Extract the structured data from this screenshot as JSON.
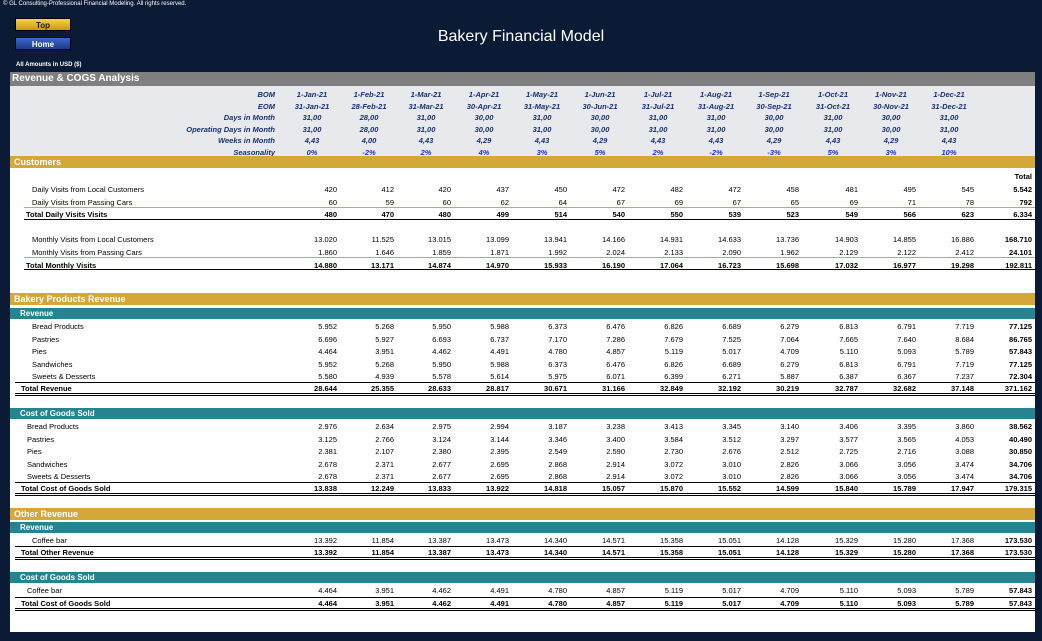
{
  "header": {
    "copyright": "© GL Consulting-Professional Financial Modeling. All rights reserved.",
    "top_button": "Top",
    "home_button": "Home",
    "title": "Bakery Financial Model",
    "amounts": "All Amounts in  USD ($)"
  },
  "analysis_title": "Revenue & COGS Analysis",
  "timeline": {
    "bom_label": "BOM",
    "eom_label": "EOM",
    "days_label": "Days in Month",
    "opdays_label": "Operating Days in Month",
    "weeks_label": "Weeks in Month",
    "season_label": "Seasonality",
    "bom": [
      "1-Jan-21",
      "1-Feb-21",
      "1-Mar-21",
      "1-Apr-21",
      "1-May-21",
      "1-Jun-21",
      "1-Jul-21",
      "1-Aug-21",
      "1-Sep-21",
      "1-Oct-21",
      "1-Nov-21",
      "1-Dec-21"
    ],
    "eom": [
      "31-Jan-21",
      "28-Feb-21",
      "31-Mar-21",
      "30-Apr-21",
      "31-May-21",
      "30-Jun-21",
      "31-Jul-21",
      "31-Aug-21",
      "30-Sep-21",
      "31-Oct-21",
      "30-Nov-21",
      "31-Dec-21"
    ],
    "days": [
      "31,00",
      "28,00",
      "31,00",
      "30,00",
      "31,00",
      "30,00",
      "31,00",
      "31,00",
      "30,00",
      "31,00",
      "30,00",
      "31,00"
    ],
    "opdays": [
      "31,00",
      "28,00",
      "31,00",
      "30,00",
      "31,00",
      "30,00",
      "31,00",
      "31,00",
      "30,00",
      "31,00",
      "30,00",
      "31,00"
    ],
    "weeks": [
      "4,43",
      "4,00",
      "4,43",
      "4,29",
      "4,43",
      "4,29",
      "4,43",
      "4,43",
      "4,29",
      "4,43",
      "4,29",
      "4,43"
    ],
    "season": [
      "0%",
      "-2%",
      "2%",
      "4%",
      "3%",
      "5%",
      "2%",
      "-2%",
      "-3%",
      "5%",
      "3%",
      "10%"
    ]
  },
  "colors": {
    "accent_gold": "#d4a838",
    "accent_teal": "#25848f",
    "header_navy": "#17306e",
    "seasonality_blue": "#1f2fd6"
  },
  "total_header": "Total",
  "customers": {
    "title": "Customers",
    "rows": [
      {
        "label": "Daily Visits from Local Customers",
        "values": [
          "420",
          "412",
          "420",
          "437",
          "450",
          "472",
          "482",
          "472",
          "458",
          "481",
          "495",
          "545"
        ],
        "total": "5.542",
        "bold": false
      },
      {
        "label": "Daily Visits from Passing Cars",
        "values": [
          "60",
          "59",
          "60",
          "62",
          "64",
          "67",
          "69",
          "67",
          "65",
          "69",
          "71",
          "78"
        ],
        "total": "792",
        "bold": false
      },
      {
        "label": "Total Daily Visits Visits",
        "values": [
          "480",
          "470",
          "480",
          "499",
          "514",
          "540",
          "550",
          "539",
          "523",
          "549",
          "566",
          "623"
        ],
        "total": "6.334",
        "bold": true
      },
      {
        "label": "Monthly Visits from Local Customers",
        "values": [
          "13.020",
          "11.525",
          "13.015",
          "13.099",
          "13.941",
          "14.166",
          "14.931",
          "14.633",
          "13.736",
          "14.903",
          "14.855",
          "16.886"
        ],
        "total": "168.710",
        "bold": false
      },
      {
        "label": "Monthly Visits from Passing Cars",
        "values": [
          "1.860",
          "1.646",
          "1.859",
          "1.871",
          "1.992",
          "2.024",
          "2.133",
          "2.090",
          "1.962",
          "2.129",
          "2.122",
          "2.412"
        ],
        "total": "24.101",
        "bold": false
      },
      {
        "label": "Total Monthly Visits",
        "values": [
          "14.880",
          "13.171",
          "14.874",
          "14.970",
          "15.933",
          "16.190",
          "17.064",
          "16.723",
          "15.698",
          "17.032",
          "16.977",
          "19.298"
        ],
        "total": "192.811",
        "bold": true
      }
    ]
  },
  "bakery": {
    "title": "Bakery Products Revenue",
    "revenue_title": "Revenue",
    "revenue_rows": [
      {
        "label": "Bread Products",
        "values": [
          "5.952",
          "5.268",
          "5.950",
          "5.988",
          "6.373",
          "6.476",
          "6.826",
          "6.689",
          "6.279",
          "6.813",
          "6.791",
          "7.719"
        ],
        "total": "77.125",
        "bold": false
      },
      {
        "label": "Pastries",
        "values": [
          "6.696",
          "5.927",
          "6.693",
          "6.737",
          "7.170",
          "7.286",
          "7.679",
          "7.525",
          "7.064",
          "7.665",
          "7.640",
          "8.684"
        ],
        "total": "86.765",
        "bold": false
      },
      {
        "label": "Pies",
        "values": [
          "4.464",
          "3.951",
          "4.462",
          "4.491",
          "4.780",
          "4.857",
          "5.119",
          "5.017",
          "4.709",
          "5.110",
          "5.093",
          "5.789"
        ],
        "total": "57.843",
        "bold": false
      },
      {
        "label": "Sandwiches",
        "values": [
          "5.952",
          "5.268",
          "5.950",
          "5.988",
          "6.373",
          "6.476",
          "6.826",
          "6.689",
          "6.279",
          "6.813",
          "6.791",
          "7.719"
        ],
        "total": "77.125",
        "bold": false
      },
      {
        "label": "Sweets & Desserts",
        "values": [
          "5.580",
          "4.939",
          "5.578",
          "5.614",
          "5.975",
          "6.071",
          "6.399",
          "6.271",
          "5.887",
          "6.387",
          "6.367",
          "7.237"
        ],
        "total": "72.304",
        "bold": false
      },
      {
        "label": "Total Revenue",
        "values": [
          "28.644",
          "25.355",
          "28.633",
          "28.817",
          "30.671",
          "31.166",
          "32.849",
          "32.192",
          "30.219",
          "32.787",
          "32.682",
          "37.148"
        ],
        "total": "371.162",
        "bold": true
      }
    ],
    "cogs_title": "Cost of Goods Sold",
    "cogs_rows": [
      {
        "label": "Bread Products",
        "values": [
          "2.976",
          "2.634",
          "2.975",
          "2.994",
          "3.187",
          "3.238",
          "3.413",
          "3.345",
          "3.140",
          "3.406",
          "3.395",
          "3.860"
        ],
        "total": "38.562",
        "bold": false
      },
      {
        "label": "Pastries",
        "values": [
          "3.125",
          "2.766",
          "3.124",
          "3.144",
          "3.346",
          "3.400",
          "3.584",
          "3.512",
          "3.297",
          "3.577",
          "3.565",
          "4.053"
        ],
        "total": "40.490",
        "bold": false
      },
      {
        "label": "Pies",
        "values": [
          "2.381",
          "2.107",
          "2.380",
          "2.395",
          "2.549",
          "2.590",
          "2.730",
          "2.676",
          "2.512",
          "2.725",
          "2.716",
          "3.088"
        ],
        "total": "30.850",
        "bold": false
      },
      {
        "label": "Sandwiches",
        "values": [
          "2.678",
          "2.371",
          "2.677",
          "2.695",
          "2.868",
          "2.914",
          "3.072",
          "3.010",
          "2.826",
          "3.066",
          "3.056",
          "3.474"
        ],
        "total": "34.706",
        "bold": false
      },
      {
        "label": "Sweets & Desserts",
        "values": [
          "2.678",
          "2.371",
          "2.677",
          "2.695",
          "2.868",
          "2.914",
          "3.072",
          "3.010",
          "2.826",
          "3.066",
          "3.056",
          "3.474"
        ],
        "total": "34.706",
        "bold": false
      },
      {
        "label": "Total Cost of Goods Sold",
        "values": [
          "13.838",
          "12.249",
          "13.833",
          "13.922",
          "14.818",
          "15.057",
          "15.870",
          "15.552",
          "14.599",
          "15.840",
          "15.789",
          "17.947"
        ],
        "total": "179.315",
        "bold": true
      }
    ]
  },
  "other": {
    "title": "Other Revenue",
    "revenue_title": "Revenue",
    "revenue_rows": [
      {
        "label": "Coffee bar",
        "values": [
          "13.392",
          "11.854",
          "13.387",
          "13.473",
          "14.340",
          "14.571",
          "15.358",
          "15.051",
          "14.128",
          "15.329",
          "15.280",
          "17.368"
        ],
        "total": "173.530",
        "bold": false
      },
      {
        "label": "Total Other Revenue",
        "values": [
          "13.392",
          "11.854",
          "13.387",
          "13.473",
          "14.340",
          "14.571",
          "15.358",
          "15.051",
          "14.128",
          "15.329",
          "15.280",
          "17.368"
        ],
        "total": "173.530",
        "bold": true
      }
    ],
    "cogs_title": "Cost of Goods Sold",
    "cogs_rows": [
      {
        "label": "Coffee bar",
        "values": [
          "4.464",
          "3.951",
          "4.462",
          "4.491",
          "4.780",
          "4.857",
          "5.119",
          "5.017",
          "4.709",
          "5.110",
          "5.093",
          "5.789"
        ],
        "total": "57.843",
        "bold": false
      },
      {
        "label": "Total Cost of Goods Sold",
        "values": [
          "4.464",
          "3.951",
          "4.462",
          "4.491",
          "4.780",
          "4.857",
          "5.119",
          "5.017",
          "4.709",
          "5.110",
          "5.093",
          "5.789"
        ],
        "total": "57.843",
        "bold": true
      }
    ]
  }
}
